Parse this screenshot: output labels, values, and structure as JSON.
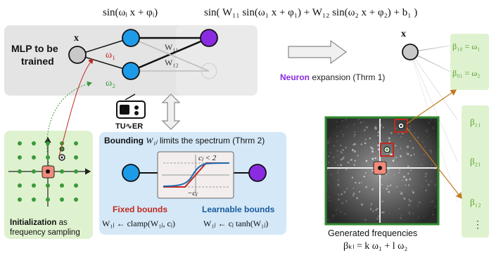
{
  "formulas": {
    "single_neuron": "sin(ωᵢ x + φᵢ)",
    "composed": "sin( W₁₁ sin(ω₁ x + φ₁) + W₁₂ sin(ω₂ x + φ₂) + b₁ )"
  },
  "mlp": {
    "title_line1": "MLP to be",
    "title_line2": "trained",
    "input_label": "x",
    "omega1": "ω₁",
    "omega2": "ω₂",
    "w11": "W₁₁",
    "w12": "W₁₂"
  },
  "expansion": {
    "neuron_word": "Neuron",
    "rest": " expansion (Thrm 1)",
    "input_label": "x"
  },
  "logo": {
    "text": "TU∿ER"
  },
  "bounding": {
    "title_bold": "Bounding",
    "title_var": "W₁ⱼ",
    "title_rest": "limits the spectrum (Thrm 2)",
    "inset_top": "cⱼ < 2",
    "inset_bottom": "−cⱼ",
    "fixed_title": "Fixed bounds",
    "fixed_formula": "W₁ⱼ ← clamp(W₁ⱼ, cⱼ)",
    "learnable_title": "Learnable bounds",
    "learnable_formula": "W₁ⱼ ← cⱼ tanh(W₁ⱼ)"
  },
  "init": {
    "bold": "Initialization",
    "rest": " as",
    "line2": "frequency sampling"
  },
  "generated": {
    "line1": "Generated frequencies",
    "line2": "βₖₗ = k ω₁ + l ω₂"
  },
  "betas": {
    "b10": "β₁₀ = ω₁",
    "b01": "β₀₁ = ω₂",
    "b11": "β₁₁",
    "b21": "β₂₁",
    "b12": "β₁₂",
    "dots": "⋮"
  },
  "colors": {
    "blue_node": "#1e9be8",
    "purple_node": "#8a2be2",
    "fixed_red": "#c0281e",
    "learnable_blue": "#1a5aa0",
    "green_panel": "#dff2cf",
    "blue_panel": "#d4e8f7",
    "beta_green": "#5a9e2e"
  }
}
